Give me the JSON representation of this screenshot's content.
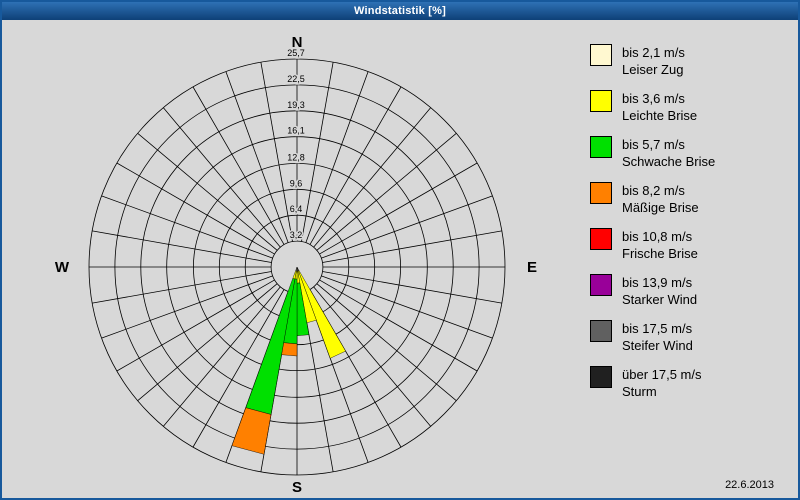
{
  "window": {
    "title": "Windstatistik [%]",
    "date": "22.6.2013"
  },
  "chart_data": {
    "type": "windrose",
    "title": "Windstatistik [%]",
    "unit": "%",
    "rmax": 25.7,
    "sectors": 36,
    "ring_values": [
      3.2,
      6.4,
      9.6,
      12.8,
      16.1,
      19.3,
      22.5,
      25.7
    ],
    "ring_labels": [
      "3,2",
      "6,4",
      "9,6",
      "12,8",
      "16,1",
      "19,3",
      "22,5",
      "25,7"
    ],
    "compass": {
      "north": "N",
      "east": "E",
      "south": "S",
      "west": "W"
    },
    "legend_position": "right",
    "classes": [
      {
        "speed": "bis 2,1 m/s",
        "name": "Leiser Zug",
        "color": "#FFF8D0"
      },
      {
        "speed": "bis 3,6 m/s",
        "name": "Leichte Brise",
        "color": "#FFFF00"
      },
      {
        "speed": "bis 5,7 m/s",
        "name": "Schwache Brise",
        "color": "#00E000"
      },
      {
        "speed": "bis 8,2 m/s",
        "name": "Mäßige Brise",
        "color": "#FF8000"
      },
      {
        "speed": "bis 10,8 m/s",
        "name": "Frische Brise",
        "color": "#FF0000"
      },
      {
        "speed": "bis 13,9 m/s",
        "name": "Starker Wind",
        "color": "#990099"
      },
      {
        "speed": "bis 17,5 m/s",
        "name": "Steifer Wind",
        "color": "#606060"
      },
      {
        "speed": "über 17,5 m/s",
        "name": "Sturm",
        "color": "#202020"
      }
    ],
    "petals": [
      {
        "direction_deg": 155,
        "stack": [
          0.5,
          11.5,
          0,
          0,
          0,
          0,
          0,
          0
        ]
      },
      {
        "direction_deg": 165,
        "stack": [
          0.5,
          6.5,
          0,
          0,
          0,
          0,
          0,
          0
        ]
      },
      {
        "direction_deg": 175,
        "stack": [
          0.5,
          1.5,
          6.5,
          0,
          0,
          0,
          0,
          0
        ]
      },
      {
        "direction_deg": 185,
        "stack": [
          0.5,
          1.0,
          8.0,
          1.5,
          0,
          0,
          0,
          0
        ]
      },
      {
        "direction_deg": 195,
        "stack": [
          0.5,
          1.0,
          17.0,
          5.0,
          0,
          0,
          0,
          0
        ]
      }
    ]
  }
}
